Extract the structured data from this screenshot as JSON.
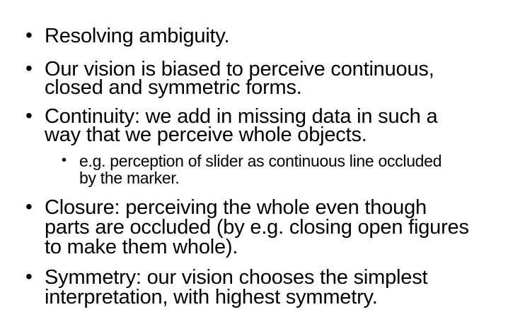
{
  "slide": {
    "bullets": [
      {
        "symbol": "•",
        "lines": [
          "Resolving ambiguity."
        ]
      },
      {
        "symbol": "•",
        "lines": [
          "Our vision is biased to perceive continuous,",
          "closed and symmetric forms."
        ]
      },
      {
        "symbol": "•",
        "lines": [
          "Continuity: we add in missing data in such a",
          "way that we perceive whole objects."
        ]
      },
      {
        "symbol": "•",
        "lines": [
          "e.g. perception of slider as continuous line occluded",
          "by the marker."
        ]
      },
      {
        "symbol": "•",
        "lines": [
          "Closure: perceiving the whole even though",
          "parts are occluded (by e.g. closing open figures",
          "to make them whole)."
        ]
      },
      {
        "symbol": "•",
        "lines": [
          "Symmetry: our vision chooses the simplest",
          "interpretation, with highest symmetry."
        ]
      }
    ]
  }
}
